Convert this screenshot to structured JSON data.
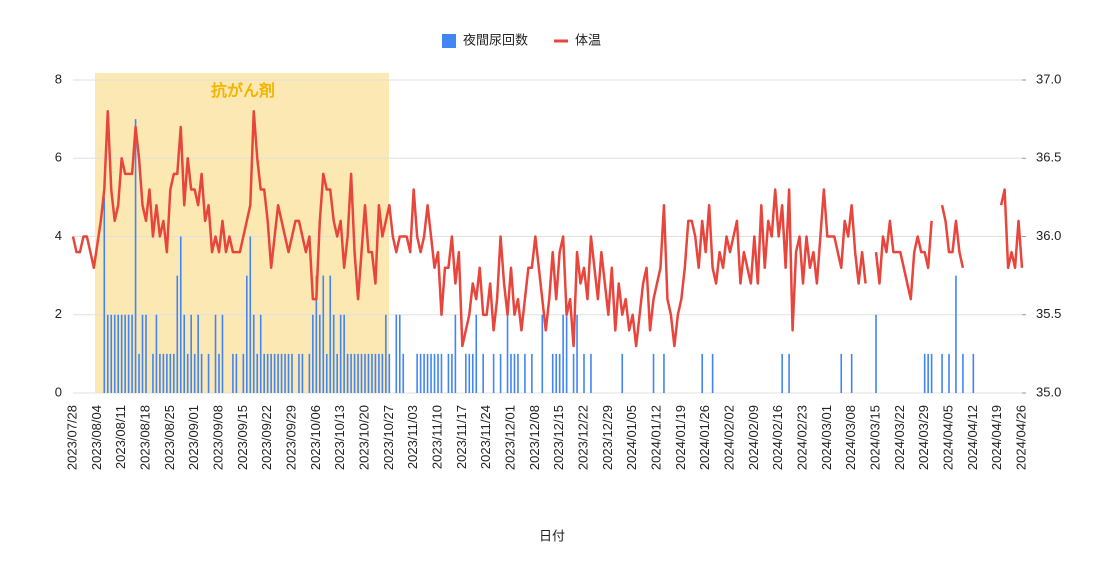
{
  "chart_data": {
    "type": "bar_line",
    "x_label": "日付",
    "annotation": "抗がん剤",
    "categories": [
      "2023/07/28",
      null,
      null,
      null,
      null,
      null,
      null,
      "2023/08/04",
      null,
      null,
      null,
      null,
      null,
      null,
      "2023/08/11",
      null,
      null,
      null,
      null,
      null,
      null,
      "2023/08/18",
      null,
      null,
      null,
      null,
      null,
      null,
      "2023/08/25",
      null,
      null,
      null,
      null,
      null,
      null,
      "2023/09/01",
      null,
      null,
      null,
      null,
      null,
      null,
      "2023/09/08",
      null,
      null,
      null,
      null,
      null,
      null,
      "2023/09/15",
      null,
      null,
      null,
      null,
      null,
      null,
      "2023/09/22",
      null,
      null,
      null,
      null,
      null,
      null,
      "2023/09/29",
      null,
      null,
      null,
      null,
      null,
      null,
      "2023/10/06",
      null,
      null,
      null,
      null,
      null,
      null,
      "2023/10/13",
      null,
      null,
      null,
      null,
      null,
      null,
      "2023/10/20",
      null,
      null,
      null,
      null,
      null,
      null,
      "2023/10/27",
      null,
      null,
      null,
      null,
      null,
      null,
      "2023/11/03",
      null,
      null,
      null,
      null,
      null,
      null,
      "2023/11/10",
      null,
      null,
      null,
      null,
      null,
      null,
      "2023/11/17",
      null,
      null,
      null,
      null,
      null,
      null,
      "2023/11/24",
      null,
      null,
      null,
      null,
      null,
      null,
      "2023/12/01",
      null,
      null,
      null,
      null,
      null,
      null,
      "2023/12/08",
      null,
      null,
      null,
      null,
      null,
      null,
      "2023/12/15",
      null,
      null,
      null,
      null,
      null,
      null,
      "2023/12/22",
      null,
      null,
      null,
      null,
      null,
      null,
      "2023/12/29",
      null,
      null,
      null,
      null,
      null,
      null,
      "2024/01/05",
      null,
      null,
      null,
      null,
      null,
      null,
      "2024/01/12",
      null,
      null,
      null,
      null,
      null,
      null,
      "2024/01/19",
      null,
      null,
      null,
      null,
      null,
      null,
      "2024/01/26",
      null,
      null,
      null,
      null,
      null,
      null,
      "2024/02/02",
      null,
      null,
      null,
      null,
      null,
      null,
      "2024/02/09",
      null,
      null,
      null,
      null,
      null,
      null,
      "2024/02/16",
      null,
      null,
      null,
      null,
      null,
      null,
      "2024/02/23",
      null,
      null,
      null,
      null,
      null,
      null,
      "2024/03/01",
      null,
      null,
      null,
      null,
      null,
      null,
      "2024/03/08",
      null,
      null,
      null,
      null,
      null,
      null,
      "2024/03/15",
      null,
      null,
      null,
      null,
      null,
      null,
      "2024/03/22",
      null,
      null,
      null,
      null,
      null,
      null,
      "2024/03/29",
      null,
      null,
      null,
      null,
      null,
      null,
      "2024/04/05",
      null,
      null,
      null,
      null,
      null,
      null,
      "2024/04/12",
      null,
      null,
      null,
      null,
      null,
      null,
      "2024/04/19",
      null,
      null,
      null,
      null,
      null,
      null,
      "2024/04/26"
    ],
    "series": [
      {
        "name": "夜間尿回数",
        "type": "bar",
        "color": "#4285f4",
        "values": [
          0,
          0,
          0,
          0,
          0,
          0,
          0,
          0,
          0,
          5,
          2,
          2,
          2,
          2,
          2,
          2,
          2,
          2,
          7,
          1,
          2,
          2,
          0,
          1,
          2,
          1,
          1,
          1,
          1,
          1,
          3,
          4,
          2,
          1,
          2,
          1,
          2,
          1,
          0,
          1,
          0,
          2,
          1,
          2,
          0,
          0,
          1,
          1,
          0,
          1,
          3,
          4,
          2,
          1,
          2,
          1,
          1,
          1,
          1,
          1,
          1,
          1,
          1,
          1,
          0,
          1,
          1,
          0,
          1,
          2,
          3,
          2,
          3,
          1,
          3,
          2,
          1,
          2,
          2,
          1,
          1,
          1,
          1,
          1,
          1,
          1,
          1,
          1,
          1,
          1,
          2,
          1,
          0,
          2,
          2,
          1,
          0,
          0,
          0,
          1,
          1,
          1,
          1,
          1,
          1,
          1,
          1,
          0,
          1,
          1,
          2,
          0,
          0,
          1,
          1,
          1,
          2,
          0,
          1,
          0,
          0,
          1,
          0,
          1,
          0,
          2,
          1,
          1,
          1,
          0,
          1,
          0,
          1,
          0,
          0,
          2,
          0,
          0,
          1,
          1,
          1,
          2,
          2,
          0,
          1,
          2,
          0,
          1,
          0,
          1,
          0,
          0,
          0,
          0,
          0,
          0,
          0,
          0,
          1,
          0,
          0,
          0,
          0,
          0,
          0,
          0,
          0,
          1,
          0,
          0,
          1,
          0,
          0,
          0,
          0,
          0,
          0,
          0,
          0,
          0,
          0,
          1,
          0,
          0,
          1,
          0,
          0,
          0,
          0,
          0,
          0,
          0,
          0,
          0,
          0,
          0,
          0,
          0,
          0,
          0,
          0,
          0,
          0,
          0,
          1,
          0,
          1,
          0,
          0,
          0,
          0,
          0,
          0,
          0,
          0,
          0,
          0,
          0,
          0,
          0,
          0,
          1,
          0,
          0,
          1,
          0,
          0,
          0,
          0,
          0,
          0,
          2,
          0,
          0,
          0,
          0,
          0,
          0,
          0,
          0,
          0,
          0,
          0,
          0,
          0,
          1,
          1,
          1,
          0,
          0,
          1,
          0,
          1,
          0,
          3,
          0,
          1,
          0,
          0,
          1,
          0,
          0,
          0,
          0,
          0,
          0,
          0,
          0,
          0,
          0,
          0,
          0,
          0,
          0
        ]
      },
      {
        "name": "体温",
        "type": "line",
        "axis": "y2",
        "color": "#e8453c",
        "values": [
          36.0,
          35.9,
          35.9,
          36.0,
          36.0,
          35.9,
          35.8,
          35.95,
          36.1,
          36.3,
          36.8,
          36.3,
          36.1,
          36.2,
          36.5,
          36.4,
          36.4,
          36.4,
          36.7,
          36.5,
          36.2,
          36.1,
          36.3,
          36.0,
          36.2,
          36.0,
          36.1,
          35.9,
          36.3,
          36.4,
          36.4,
          36.7,
          36.2,
          36.5,
          36.3,
          36.3,
          36.2,
          36.4,
          36.1,
          36.2,
          35.9,
          36.0,
          35.9,
          36.1,
          35.9,
          36.0,
          35.9,
          35.9,
          35.9,
          36.0,
          36.1,
          36.2,
          36.8,
          36.5,
          36.3,
          36.3,
          36.1,
          35.8,
          36.0,
          36.2,
          36.1,
          36.0,
          35.9,
          36.0,
          36.1,
          36.1,
          36.0,
          35.9,
          36.0,
          35.6,
          35.6,
          36.1,
          36.4,
          36.3,
          36.3,
          36.1,
          36.0,
          36.1,
          35.8,
          36.0,
          36.4,
          35.9,
          35.6,
          35.9,
          36.2,
          35.9,
          35.9,
          35.7,
          36.2,
          36.0,
          36.1,
          36.2,
          36.0,
          35.9,
          36.0,
          36.0,
          36.0,
          35.9,
          36.3,
          36.0,
          35.9,
          36.0,
          36.2,
          36.0,
          35.8,
          35.9,
          35.5,
          35.8,
          35.8,
          36.0,
          35.7,
          35.9,
          35.3,
          35.4,
          35.5,
          35.7,
          35.6,
          35.8,
          35.5,
          35.5,
          35.7,
          35.4,
          35.6,
          36.0,
          35.7,
          35.5,
          35.8,
          35.5,
          35.6,
          35.4,
          35.6,
          35.8,
          35.8,
          36.0,
          35.8,
          35.6,
          35.4,
          35.6,
          35.9,
          35.6,
          35.9,
          36.0,
          35.5,
          35.6,
          35.3,
          35.9,
          35.7,
          35.8,
          35.6,
          36.0,
          35.8,
          35.6,
          35.9,
          35.7,
          35.5,
          35.8,
          35.4,
          35.7,
          35.5,
          35.6,
          35.4,
          35.5,
          35.3,
          35.5,
          35.7,
          35.8,
          35.4,
          35.6,
          35.7,
          35.8,
          36.2,
          35.6,
          35.5,
          35.3,
          35.5,
          35.6,
          35.8,
          36.1,
          36.1,
          36.0,
          35.8,
          36.1,
          35.9,
          36.2,
          35.8,
          35.7,
          35.9,
          35.8,
          36.0,
          35.9,
          36.0,
          36.1,
          35.7,
          35.9,
          35.8,
          35.7,
          36.0,
          35.7,
          36.2,
          35.8,
          36.1,
          36.0,
          36.3,
          36.0,
          36.2,
          35.8,
          36.3,
          35.4,
          35.9,
          36.0,
          35.7,
          36.0,
          35.8,
          35.9,
          35.7,
          36.0,
          36.3,
          36.0,
          36.0,
          36.0,
          35.9,
          35.8,
          36.1,
          36.0,
          36.2,
          35.9,
          35.7,
          35.9,
          35.7,
          null,
          null,
          35.9,
          35.7,
          36.0,
          35.9,
          36.1,
          35.9,
          35.9,
          35.9,
          35.8,
          35.7,
          35.6,
          35.9,
          36.0,
          35.9,
          35.9,
          35.8,
          36.1,
          null,
          null,
          36.2,
          36.1,
          35.9,
          35.9,
          36.1,
          35.9,
          35.8,
          null,
          null,
          null,
          null,
          null,
          null,
          null,
          null,
          null,
          null,
          36.2,
          36.3,
          35.8,
          35.9,
          35.8,
          36.1,
          35.8
        ]
      }
    ],
    "ylim": [
      0,
      8
    ],
    "yticks": [
      0,
      2,
      4,
      6,
      8
    ],
    "y2lim": [
      35,
      37
    ],
    "y2ticks": [
      {
        "value": 35,
        "label": "35.0"
      },
      {
        "value": 35.5,
        "label": "35.5"
      },
      {
        "value": 36,
        "label": "36.0"
      },
      {
        "value": 36.5,
        "label": "36.5"
      },
      {
        "value": 37,
        "label": "37.0"
      }
    ],
    "grid": true,
    "legend": "top"
  }
}
